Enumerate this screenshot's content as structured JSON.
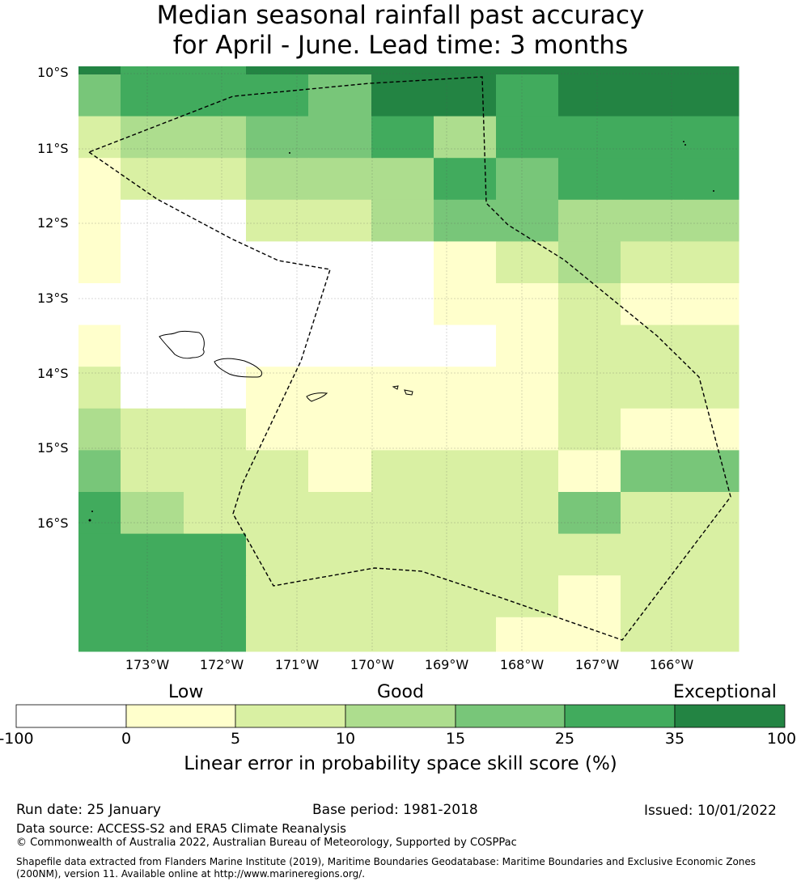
{
  "title": {
    "line1": "Median seasonal rainfall past accuracy",
    "line2": "for April - June. Lead time: 3 months"
  },
  "map": {
    "lat_labels": [
      "10°S",
      "11°S",
      "12°S",
      "13°S",
      "14°S",
      "15°S",
      "16°S"
    ],
    "lon_labels": [
      "173°W",
      "172°W",
      "171°W",
      "170°W",
      "169°W",
      "168°W",
      "167°W",
      "166°W"
    ],
    "grid_rows": [
      "6655566666666666",
      "4555554466556666",
      "2333444553555555",
      "1122333335445555",
      "1000222234443333",
      "1100000001223322",
      "0000000001112211",
      "1100000000112222",
      "2100111111112222",
      "3222111211112111",
      "4422221122121444",
      "5332222222224022",
      "5555222222222222",
      "5555322222221222",
      "5555322322211222",
      "5555543211222222",
      "5555543211222221"
    ],
    "grid_bounds": {
      "lon_min": -173.9,
      "lon_max": -165.1,
      "lat_north": -9.9,
      "lat_south": -17.7
    }
  },
  "colorbar": {
    "categories": [
      "Low",
      "Good",
      "Exceptional"
    ],
    "ticks": [
      "-100",
      "0",
      "5",
      "10",
      "15",
      "25",
      "35",
      "100"
    ],
    "colors": [
      "#ffffff",
      "#ffffcc",
      "#d9f0a3",
      "#addd8e",
      "#78c679",
      "#41ab5d",
      "#238443"
    ],
    "label": "Linear error in probability space skill score (%)"
  },
  "footer": {
    "run_date": "Run date: 25 January",
    "base_period": "Base period: 1981-2018",
    "issued": "Issued: 10/01/2022",
    "data_source": "Data source: ACCESS-S2 and ERA5 Climate Reanalysis",
    "copyright": "© Commonwealth of Australia 2022, Australian Bureau of Meteorology, Supported by COSPPac",
    "shapefile_line1": "Shapefile data extracted from Flanders Marine Institute (2019), Maritime Boundaries Geodatabase: Maritime Boundaries and Exclusive Economic Zones",
    "shapefile_line2": "(200NM), version 11. Available online at http://www.marineregions.org/."
  }
}
